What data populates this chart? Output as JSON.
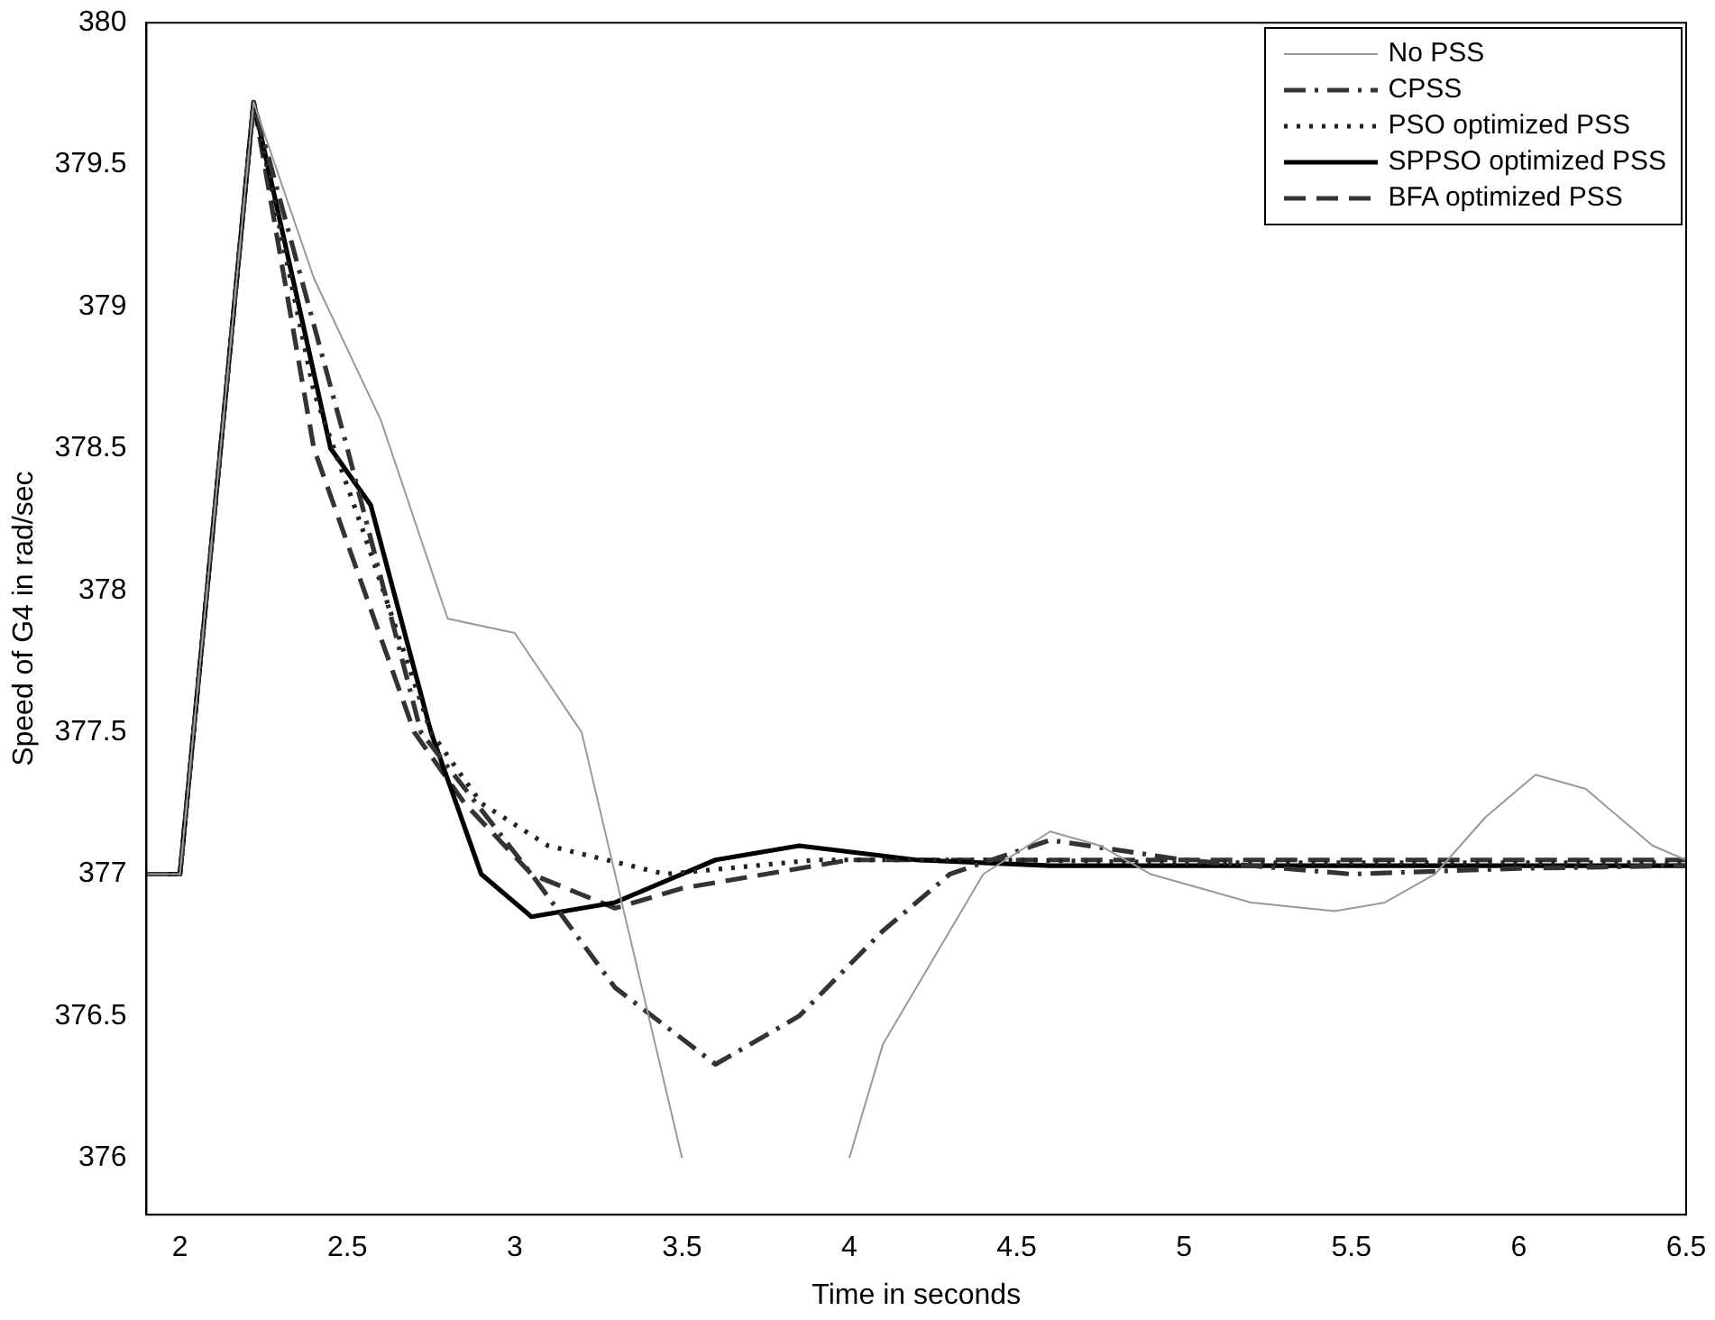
{
  "chart_data": {
    "type": "line",
    "xlabel": "Time in seconds",
    "ylabel": "Speed of G4 in rad/sec",
    "xlim": [
      1.9,
      6.5
    ],
    "xticks": [
      2,
      2.5,
      3,
      3.5,
      4,
      4.5,
      5,
      5.5,
      6,
      6.5
    ],
    "ylim": [
      375.8,
      380
    ],
    "yticks": [
      {
        "value": 376,
        "label": "376"
      },
      {
        "value": 376.5,
        "label": "376.5"
      },
      {
        "value": 377,
        "label": "377"
      },
      {
        "value": 377.5,
        "label": "377.5"
      },
      {
        "value": 378,
        "label": "378"
      },
      {
        "value": 378.5,
        "label": "378.5"
      },
      {
        "value": 379,
        "label": "379"
      },
      {
        "value": 379.5,
        "label": "379.5"
      },
      {
        "value": 380,
        "label": "380"
      }
    ],
    "grid": false,
    "legend": "top right",
    "marker": "none",
    "series": [
      {
        "name": "No PSS",
        "color": "#999999",
        "line_style": "solid",
        "x": [
          1.9,
          2.0,
          2.22,
          2.4,
          2.6,
          2.8,
          3.0,
          3.2,
          3.4,
          3.5,
          3.6,
          3.9,
          4.0,
          4.1,
          4.4,
          4.6,
          4.75,
          4.9,
          5.2,
          5.45,
          5.6,
          5.75,
          5.9,
          6.05,
          6.2,
          6.4,
          6.5
        ],
        "values": [
          377,
          377,
          379.72,
          379.1,
          378.6,
          377.9,
          377.85,
          377.5,
          376.5,
          376.0,
          null,
          null,
          376.0,
          376.4,
          377,
          377.15,
          377.1,
          377,
          376.9,
          376.87,
          376.9,
          377,
          377.2,
          377.35,
          377.3,
          377.1,
          377.05
        ]
      },
      {
        "name": "CPSS",
        "color": "#333333",
        "line_style": "dashdot",
        "x": [
          1.9,
          2.0,
          2.22,
          2.5,
          2.72,
          3.05,
          3.3,
          3.6,
          3.85,
          4.1,
          4.3,
          4.6,
          5.0,
          5.5,
          6.0,
          6.5
        ],
        "values": [
          377,
          377,
          379.72,
          378.5,
          377.5,
          377,
          376.6,
          376.33,
          376.5,
          376.8,
          377,
          377.12,
          377.05,
          377,
          377.02,
          377.03
        ]
      },
      {
        "name": "PSO optimized PSS",
        "color": "#222222",
        "line_style": "dotted",
        "x": [
          1.9,
          2.0,
          2.22,
          2.4,
          2.55,
          2.75,
          2.9,
          3.1,
          3.45,
          3.9,
          4.5,
          5.0,
          5.5,
          6.0,
          6.5
        ],
        "values": [
          377,
          377,
          379.72,
          378.7,
          378.2,
          377.5,
          377.25,
          377.1,
          377,
          377.05,
          377.05,
          377.04,
          377.04,
          377.04,
          377.04
        ]
      },
      {
        "name": "SPPSO optimized PSS",
        "color": "#000000",
        "line_style": "solid",
        "x": [
          1.9,
          2.0,
          2.22,
          2.45,
          2.57,
          2.75,
          2.9,
          3.05,
          3.3,
          3.6,
          3.85,
          4.2,
          4.6,
          5.0,
          5.5,
          6.0,
          6.5
        ],
        "values": [
          377,
          377,
          379.72,
          378.5,
          378.3,
          377.5,
          377,
          376.85,
          376.9,
          377.05,
          377.1,
          377.05,
          377.03,
          377.03,
          377.03,
          377.03,
          377.03
        ]
      },
      {
        "name": "BFA optimized PSS",
        "color": "#333333",
        "line_style": "dashed",
        "x": [
          1.9,
          2.0,
          2.22,
          2.4,
          2.55,
          2.7,
          2.85,
          3.05,
          3.3,
          3.5,
          3.75,
          4.0,
          4.5,
          5.0,
          5.5,
          6.0,
          6.5
        ],
        "values": [
          377,
          377,
          379.72,
          378.5,
          378.0,
          377.5,
          377.25,
          377,
          376.88,
          376.95,
          377.0,
          377.05,
          377.05,
          377.05,
          377.05,
          377.05,
          377.05
        ]
      }
    ]
  }
}
